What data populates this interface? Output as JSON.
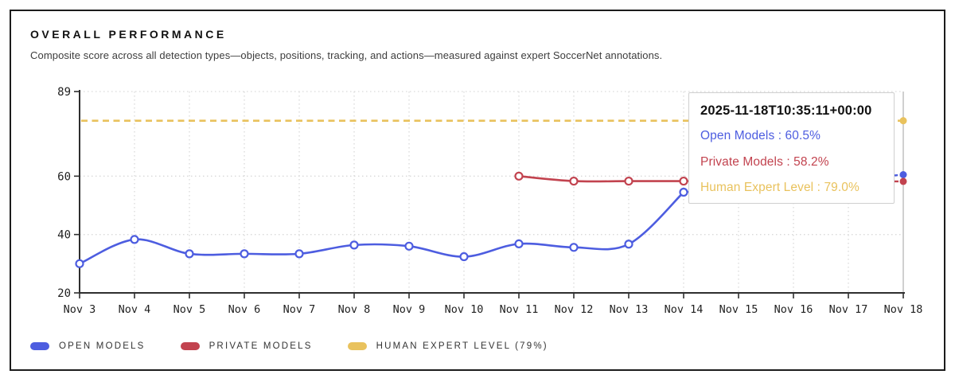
{
  "header": {
    "title": "OVERALL PERFORMANCE",
    "subtitle": "Composite score across all detection types—objects, positions, tracking, and actions—measured against expert SoccerNet annotations."
  },
  "colors": {
    "open_models": "#4d5de0",
    "private_models": "#c2434f",
    "human_expert": "#e9c25d",
    "grid": "#d9d9d9",
    "axis": "#2f2f2f",
    "crosshair": "#c4c4c4"
  },
  "chart_data": {
    "type": "line",
    "title": "Overall Performance",
    "x": [
      "Nov 3",
      "Nov 4",
      "Nov 5",
      "Nov 6",
      "Nov 7",
      "Nov 8",
      "Nov 9",
      "Nov 10",
      "Nov 11",
      "Nov 12",
      "Nov 13",
      "Nov 14",
      "Nov 15",
      "Nov 16",
      "Nov 17",
      "Nov 18"
    ],
    "ylim": [
      20,
      89
    ],
    "yticks": [
      20,
      40,
      60,
      89
    ],
    "grid": true,
    "legend_position": "bottom",
    "series": [
      {
        "name": "Open Models",
        "color_key": "open_models",
        "values": [
          30,
          38.3,
          33.4,
          33.4,
          33.4,
          36.4,
          36,
          32.4,
          36.8,
          35.6,
          36.7,
          54.5,
          null,
          null,
          null,
          60.5
        ]
      },
      {
        "name": "Private Models",
        "color_key": "private_models",
        "values": [
          null,
          null,
          null,
          null,
          null,
          null,
          null,
          null,
          60,
          58.3,
          58.3,
          58.3,
          null,
          null,
          null,
          58.2
        ]
      }
    ],
    "reference_line": {
      "name": "Human Expert Level",
      "value": 79,
      "color_key": "human_expert",
      "style": "dashed"
    },
    "hover_x": "Nov 18"
  },
  "tooltip": {
    "title": "2025-11-18T10:35:11+00:00",
    "rows": [
      {
        "text": "Open Models : 60.5%",
        "color_key": "open_models"
      },
      {
        "text": "Private Models : 58.2%",
        "color_key": "private_models"
      },
      {
        "text": "Human Expert Level : 79.0%",
        "color_key": "human_expert"
      }
    ]
  },
  "legend": {
    "items": [
      {
        "label": "OPEN MODELS",
        "color_key": "open_models"
      },
      {
        "label": "PRIVATE MODELS",
        "color_key": "private_models"
      },
      {
        "label": "HUMAN EXPERT LEVEL (79%)",
        "color_key": "human_expert"
      }
    ]
  }
}
